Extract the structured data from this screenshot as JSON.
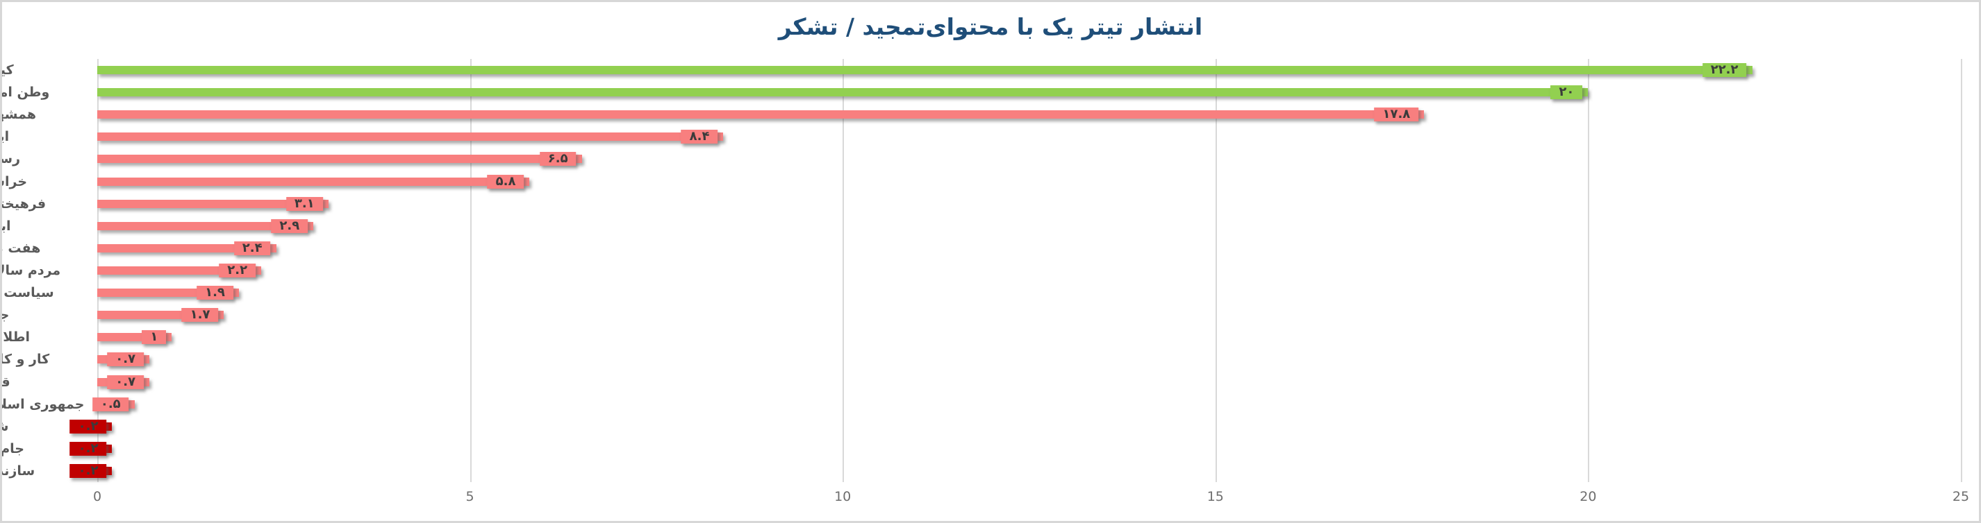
{
  "chart_data": {
    "type": "bar",
    "orientation": "horizontal",
    "title": "انتشار تیتر یک با محتوای‌تمجید / تشکر",
    "categories": [
      "کیهان",
      "وطن امروز",
      "همشهری",
      "ایران",
      "رسالت",
      "خراسان",
      "فرهیختگان",
      "ابتکار",
      "هفت صبح",
      "مردم سالاری",
      "سیاست روز",
      "جوان",
      "اطلاعات",
      "کار و کارگر",
      "قدس",
      "جمهوری اسلامی",
      "شرق",
      "جام جم",
      "سازندگی"
    ],
    "values": [
      22.2,
      20,
      17.8,
      8.4,
      6.5,
      5.8,
      3.1,
      2.9,
      2.4,
      2.2,
      1.9,
      1.7,
      1,
      0.7,
      0.7,
      0.5,
      0.2,
      0.2,
      0.2
    ],
    "value_labels": [
      "۲۲.۲",
      "۲۰",
      "۱۷.۸",
      "۸.۴",
      "۶.۵",
      "۵.۸",
      "۳.۱",
      "۲.۹",
      "۲.۴",
      "۲.۲",
      "۱.۹",
      "۱.۷",
      "۱",
      "۰.۷",
      "۰.۷",
      "۰.۵",
      "۰.۲",
      "۰.۲",
      "۰.۲"
    ],
    "bar_colors": [
      "green",
      "green",
      "salmon",
      "salmon",
      "salmon",
      "salmon",
      "salmon",
      "salmon",
      "salmon",
      "salmon",
      "salmon",
      "salmon",
      "salmon",
      "salmon",
      "salmon",
      "salmon",
      "dark_red",
      "dark_red",
      "dark_red"
    ],
    "xlim": [
      0,
      25
    ],
    "x_ticks": [
      "0",
      "5",
      "10",
      "15",
      "20",
      "25"
    ],
    "grid": true,
    "legend": "none",
    "colors": {
      "green": "#92d050",
      "salmon": "#f87f7f",
      "dark_red": "#c00000",
      "title_text": "#1f4e79",
      "value_label_text": "#3b3b3b",
      "category_text": "#595959",
      "tick_text": "#6e6e6e",
      "gridline": "#d9d9d9"
    }
  }
}
